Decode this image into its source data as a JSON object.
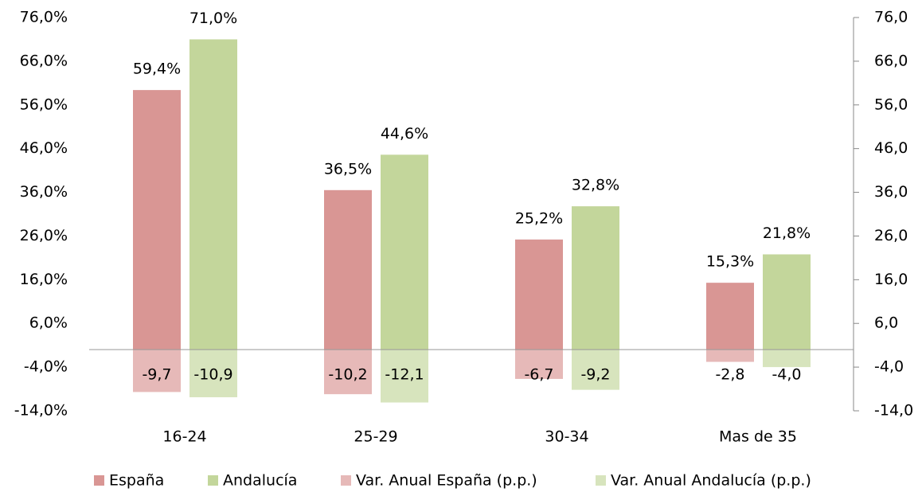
{
  "chart_data": {
    "type": "bar",
    "categories": [
      "16-24",
      "25-29",
      "30-34",
      "Mas de 35"
    ],
    "series": [
      {
        "name": "España",
        "color": "#d99694",
        "values": [
          59.4,
          36.5,
          25.2,
          15.3
        ],
        "value_labels": [
          "59,4%",
          "36,5%",
          "25,2%",
          "15,3%"
        ]
      },
      {
        "name": "Andalucía",
        "color": "#c3d69b",
        "values": [
          71.0,
          44.6,
          32.8,
          21.8
        ],
        "value_labels": [
          "71,0%",
          "44,6%",
          "32,8%",
          "21,8%"
        ]
      },
      {
        "name": "Var. Anual España (p.p.)",
        "color": "#e6b9b8",
        "axis": "y2",
        "values": [
          -9.7,
          -10.2,
          -6.7,
          -2.8
        ],
        "value_labels": [
          "-9,7",
          "-10,2",
          "-6,7",
          "-2,8"
        ]
      },
      {
        "name": "Var. Anual Andalucía (p.p.)",
        "color": "#d7e4bd",
        "axis": "y2",
        "values": [
          -10.9,
          -12.1,
          -9.2,
          -4.0
        ],
        "value_labels": [
          "-10,9",
          "-12,1",
          "-9,2",
          "-4,0"
        ]
      }
    ],
    "ylim": [
      -14,
      76
    ],
    "yticks": [
      {
        "value": -14,
        "label": "-14,0%"
      },
      {
        "value": -4,
        "label": "-4,0%"
      },
      {
        "value": 6,
        "label": "6,0%"
      },
      {
        "value": 16,
        "label": "16,0%"
      },
      {
        "value": 26,
        "label": "26,0%"
      },
      {
        "value": 36,
        "label": "36,0%"
      },
      {
        "value": 46,
        "label": "46,0%"
      },
      {
        "value": 56,
        "label": "56,0%"
      },
      {
        "value": 66,
        "label": "66,0%"
      },
      {
        "value": 76,
        "label": "76,0%"
      }
    ],
    "y2lim": [
      -14,
      76
    ],
    "y2ticks": [
      {
        "value": -14,
        "label": "-14,0"
      },
      {
        "value": -4,
        "label": "-4,0"
      },
      {
        "value": 6,
        "label": "6,0"
      },
      {
        "value": 16,
        "label": "16,0"
      },
      {
        "value": 26,
        "label": "26,0"
      },
      {
        "value": 36,
        "label": "36,0"
      },
      {
        "value": 46,
        "label": "46,0"
      },
      {
        "value": 56,
        "label": "56,0"
      },
      {
        "value": 66,
        "label": "66,0"
      },
      {
        "value": 76,
        "label": "76,0"
      }
    ],
    "legend": "bottom"
  }
}
